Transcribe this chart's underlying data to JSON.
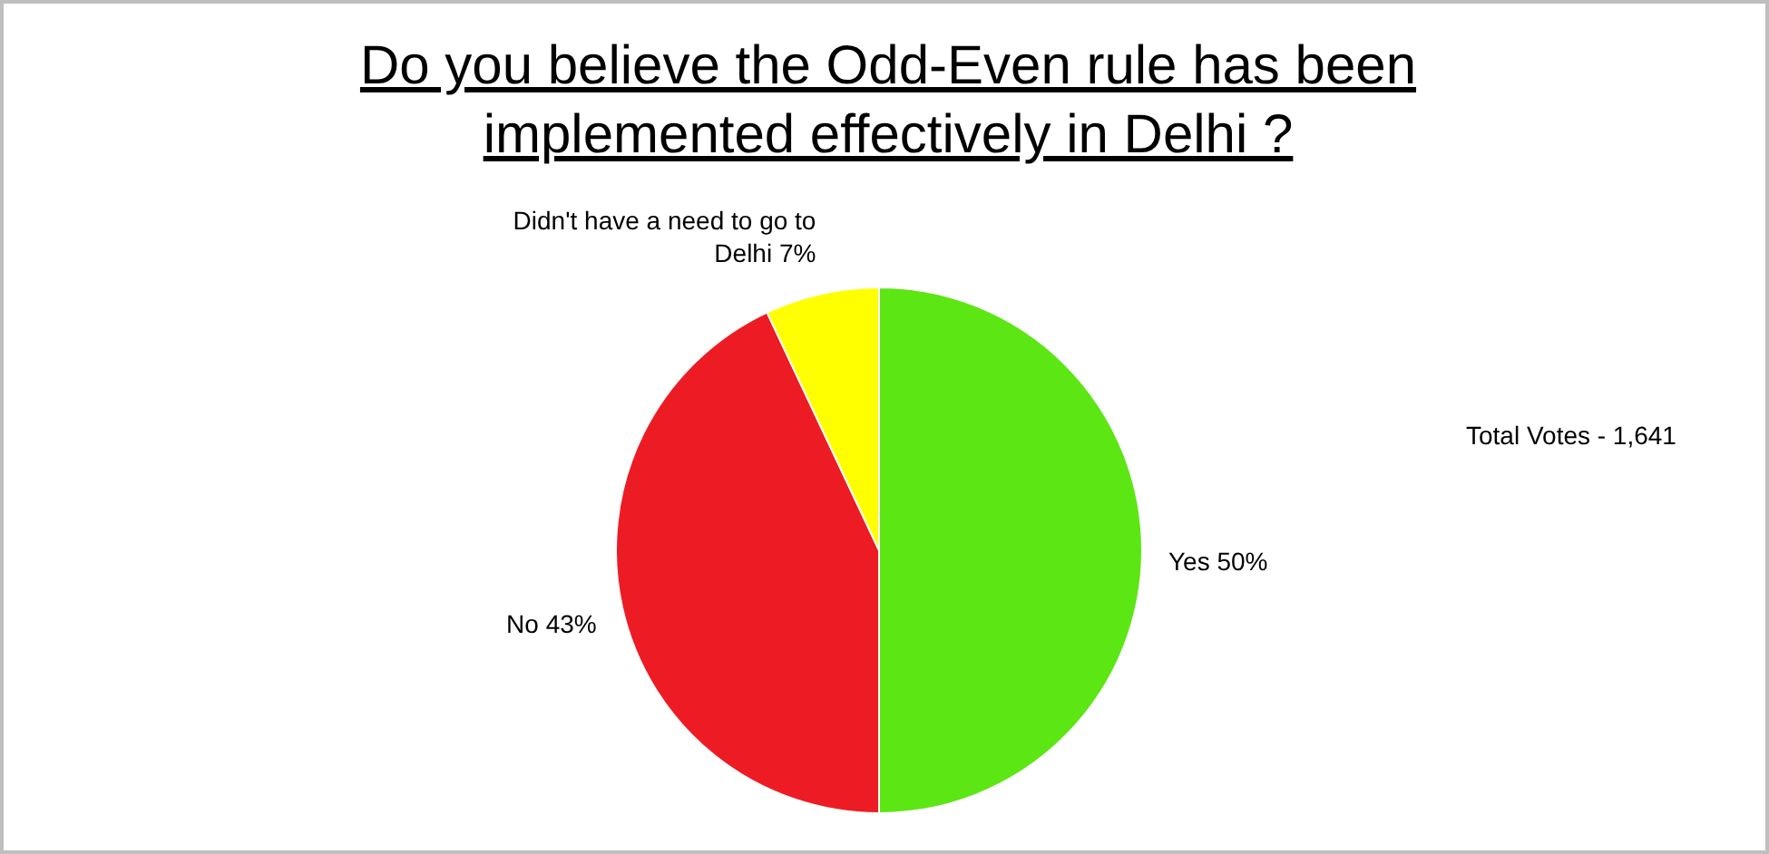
{
  "chart_data": {
    "type": "pie",
    "title": "Do you believe the Odd-Even rule has been implemented effectively in Delhi ?",
    "categories": [
      "Yes",
      "No",
      "Didn't have a need to go to Delhi"
    ],
    "values": [
      50,
      43,
      7
    ],
    "value_labels": [
      "50%",
      "43%",
      "7%"
    ],
    "colors": [
      "#5ce614",
      "#ed1c24",
      "#ffff00"
    ],
    "annotations": [
      "Total Votes - 1,641"
    ],
    "legend": false
  }
}
